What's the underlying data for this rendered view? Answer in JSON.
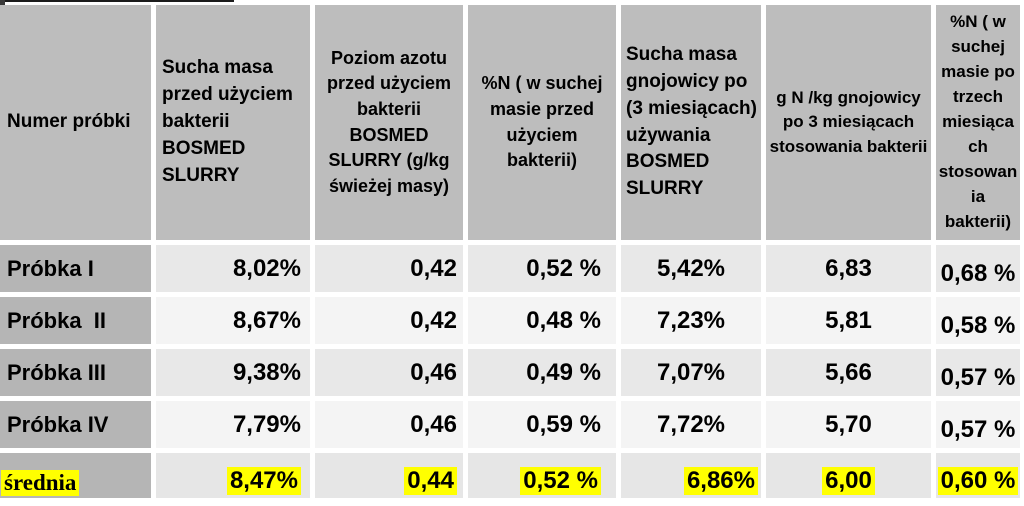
{
  "page": {
    "background": "#ffffff"
  },
  "colors": {
    "header_bg": "#bdbdbd",
    "label_column_bg": "#b5b5b5",
    "row_band_dark": "#e8e8e8",
    "row_band_light": "#f4f4f4",
    "mean_row_bg": "#e6e6e6",
    "highlight": "#ffff00",
    "text": "#000000"
  },
  "table": {
    "columns": [
      {
        "label": "Numer próbki"
      },
      {
        "label": "Sucha masa przed użyciem bakterii BOSMED SLURRY"
      },
      {
        "label": "Poziom azotu przed użyciem bakterii BOSMED SLURRY (g/kg świeżej masy)"
      },
      {
        "label": "%N ( w suchej masie przed użyciem bakterii)"
      },
      {
        "label": "Sucha masa gnojowicy po (3 miesiącach) używania BOSMED SLURRY"
      },
      {
        "label": "g N /kg gnojowicy po 3 miesiącach stosowania bakterii"
      },
      {
        "label": "%N ( w suchej masie po trzech miesiącach stosowania bakterii)"
      }
    ],
    "rows": [
      {
        "label": "Próbka I",
        "highlighted": false,
        "values": [
          "8,02%",
          "0,42",
          "0,52 %",
          "5,42%",
          "6,83",
          "0,68 %"
        ]
      },
      {
        "label": "Próbka  II",
        "highlighted": false,
        "values": [
          "8,67%",
          "0,42",
          "0,48 %",
          "7,23%",
          "5,81",
          "0,58 %"
        ]
      },
      {
        "label": "Próbka III",
        "highlighted": false,
        "values": [
          "9,38%",
          "0,46",
          "0,49 %",
          "7,07%",
          "5,66",
          "0,57 %"
        ]
      },
      {
        "label": "Próbka IV",
        "highlighted": false,
        "values": [
          "7,79%",
          "0,46",
          "0,59 %",
          "7,72%",
          "5,70",
          "0,57 %"
        ]
      },
      {
        "label": "średnia",
        "highlighted": true,
        "values": [
          "8,47%",
          "0,44",
          "0,52 %",
          "6,86%",
          "6,00",
          "0,60 %"
        ]
      }
    ]
  }
}
